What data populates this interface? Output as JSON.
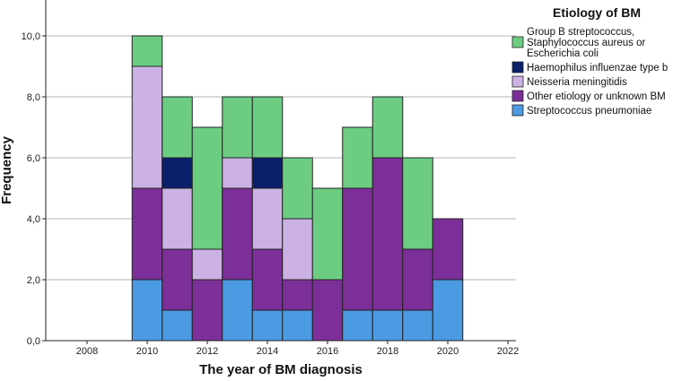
{
  "chart_data": {
    "type": "bar",
    "stacked": true,
    "xlabel": "The year of BM diagnosis",
    "ylabel": "Frequency",
    "xlim": [
      2007,
      2023
    ],
    "ylim": [
      0,
      11
    ],
    "x_ticks": [
      "2008",
      "2010",
      "2012",
      "2014",
      "2016",
      "2018",
      "2020",
      "2022"
    ],
    "y_ticks": [
      "0,0",
      "2,0",
      "4,0",
      "6,0",
      "8,0",
      "10,0"
    ],
    "grid": true,
    "legend": {
      "title": "Etiology of BM",
      "placement": "top-right",
      "order": [
        "Group B streptococcus, Staphylococcus aureus or Escherichia coli",
        "Haemophilus influenzae type b",
        "Neisseria meningitidis",
        "Other etiology or unknown BM",
        "Streptococcus pneumoniae"
      ]
    },
    "categories": [
      2010,
      2011,
      2012,
      2013,
      2014,
      2015,
      2016,
      2017,
      2018,
      2019,
      2020
    ],
    "series": [
      {
        "name": "Streptococcus pneumoniae",
        "color": "#4b9ae2",
        "values": [
          2,
          1,
          0,
          2,
          1,
          1,
          0,
          1,
          1,
          1,
          2
        ]
      },
      {
        "name": "Other etiology or unknown BM",
        "color": "#7c2f98",
        "values": [
          3,
          2,
          2,
          3,
          2,
          1,
          2,
          4,
          5,
          2,
          2
        ]
      },
      {
        "name": "Neisseria meningitidis",
        "color": "#ccb2e4",
        "values": [
          4,
          2,
          1,
          1,
          2,
          2,
          0,
          0,
          0,
          0,
          0
        ]
      },
      {
        "name": "Haemophilus influenzae type b",
        "color": "#0b1f6a",
        "values": [
          0,
          1,
          0,
          0,
          1,
          0,
          0,
          0,
          0,
          0,
          0
        ]
      },
      {
        "name": "Group B streptococcus, Staphylococcus aureus or Escherichia coli",
        "color": "#6ccd82",
        "values": [
          1,
          2,
          4,
          2,
          2,
          2,
          3,
          2,
          2,
          3,
          0
        ]
      }
    ],
    "legend_lines": {
      "group_b": [
        "Group B streptococcus,",
        "Staphylococcus aureus or",
        "Escherichia coli"
      ]
    }
  }
}
